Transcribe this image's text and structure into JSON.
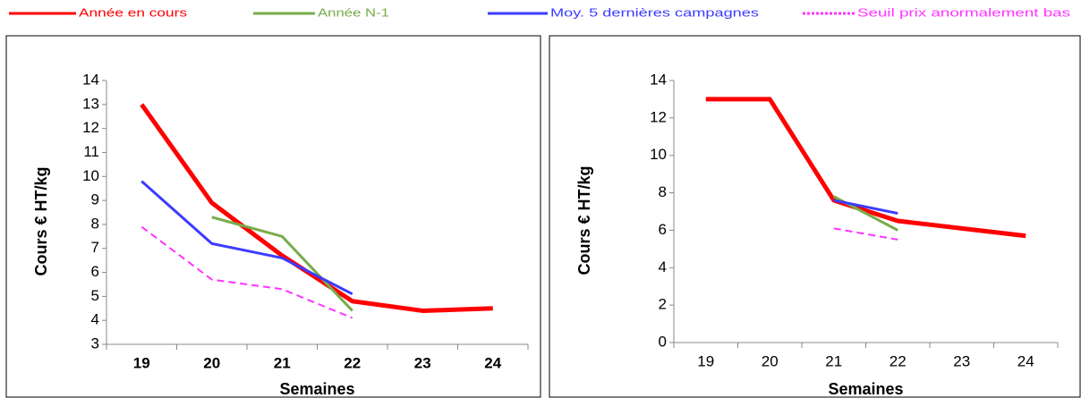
{
  "chart_data": [
    {
      "type": "line",
      "ylabel": "Cours € HT/kg",
      "xlabel": "Semaines",
      "categories": [
        "19",
        "20",
        "21",
        "22",
        "23",
        "24"
      ],
      "ylim": [
        3,
        14
      ],
      "yticks": [
        3,
        4,
        5,
        6,
        7,
        8,
        9,
        10,
        11,
        12,
        13,
        14
      ],
      "series": [
        {
          "name": "Année en cours",
          "color": "#ff0000",
          "values": [
            13.0,
            8.9,
            6.7,
            4.8,
            4.4,
            4.5
          ]
        },
        {
          "name": "Année N-1",
          "color": "#77ac4a",
          "values": [
            null,
            8.3,
            7.5,
            4.4,
            null,
            null
          ]
        },
        {
          "name": "Moy. 5 dernières campagnes",
          "color": "#3b3bff",
          "values": [
            9.8,
            7.2,
            6.6,
            5.1,
            null,
            null
          ]
        },
        {
          "name": "Seuil prix anormalement bas",
          "color": "#ff33ff",
          "dashed": true,
          "values": [
            7.9,
            5.7,
            5.3,
            4.1,
            null,
            null
          ]
        }
      ]
    },
    {
      "type": "line",
      "ylabel": "Cours € HT/kg",
      "xlabel": "Semaines",
      "categories": [
        "19",
        "20",
        "21",
        "22",
        "23",
        "24"
      ],
      "ylim": [
        0,
        14
      ],
      "yticks": [
        0,
        2,
        4,
        6,
        8,
        10,
        12,
        14
      ],
      "series": [
        {
          "color": "#ff0000",
          "values": [
            13,
            13,
            7.6,
            6.5,
            6.1,
            5.7
          ]
        },
        {
          "color": "#77ac4a",
          "values": [
            null,
            null,
            7.8,
            6.0,
            null,
            null
          ]
        },
        {
          "color": "#3b3bff",
          "values": [
            null,
            null,
            7.6,
            6.9,
            null,
            null
          ]
        },
        {
          "color": "#ff33ff",
          "dashed": true,
          "values": [
            null,
            null,
            6.1,
            5.5,
            null,
            null
          ]
        }
      ]
    }
  ]
}
